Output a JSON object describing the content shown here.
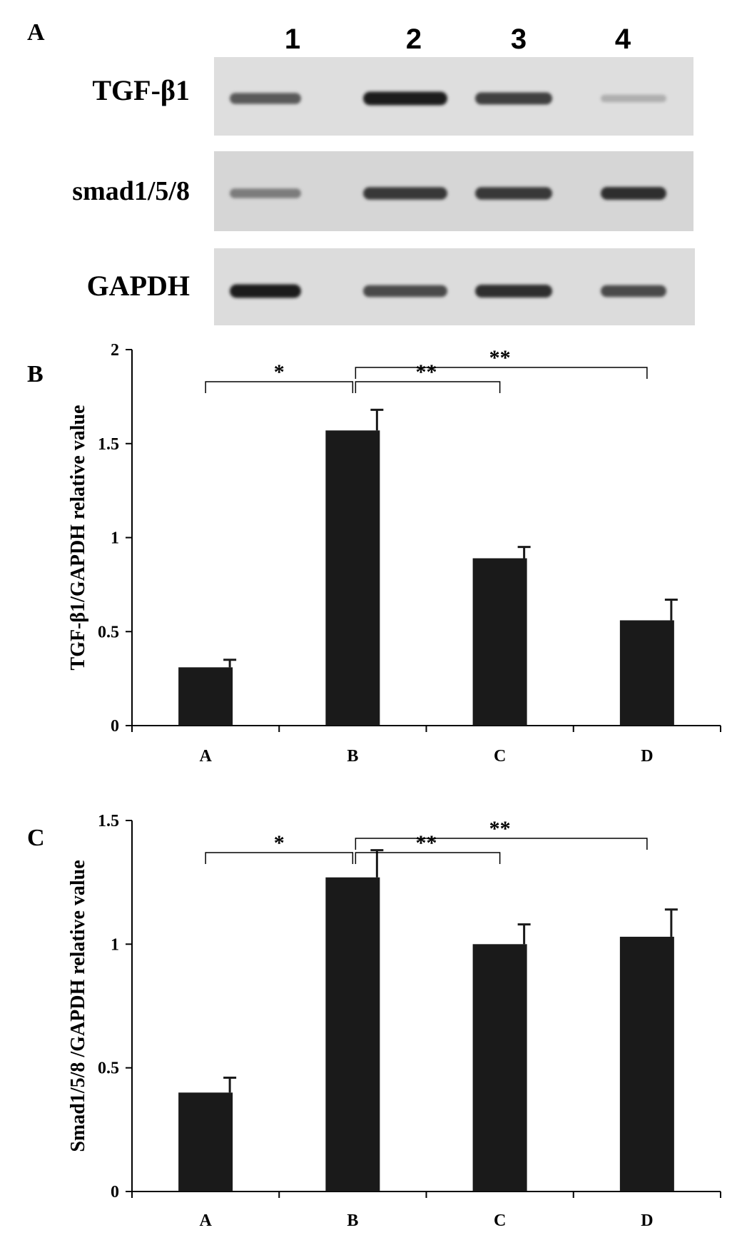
{
  "panel_a": {
    "label": "A",
    "lane_numbers": [
      "1",
      "2",
      "3",
      "4"
    ],
    "rows": [
      {
        "label": "TGF-β1",
        "band_intensity": [
          0.65,
          1.0,
          0.8,
          0.15
        ]
      },
      {
        "label": "smad1/5/8",
        "band_intensity": [
          0.45,
          0.85,
          0.85,
          0.9
        ]
      },
      {
        "label": "GAPDH",
        "band_intensity": [
          1.0,
          0.75,
          0.9,
          0.75
        ]
      }
    ]
  },
  "chart_data": [
    {
      "type": "bar",
      "panel_label": "B",
      "categories": [
        "A",
        "B",
        "C",
        "D"
      ],
      "values": [
        0.31,
        1.57,
        0.89,
        0.56
      ],
      "errors": [
        0.04,
        0.11,
        0.06,
        0.11
      ],
      "ylabel": "TGF-β1/GAPDH relative value",
      "ylim": [
        0,
        2
      ],
      "yticks": [
        0,
        0.5,
        1,
        1.5,
        2
      ],
      "ytick_labels": [
        "0",
        "0.5",
        "1",
        "1.5",
        "2"
      ],
      "significance": [
        {
          "from": "A",
          "to": "B",
          "label": "*"
        },
        {
          "from": "B",
          "to": "C",
          "label": "**"
        },
        {
          "from": "B",
          "to": "D",
          "label": "**"
        }
      ]
    },
    {
      "type": "bar",
      "panel_label": "C",
      "categories": [
        "A",
        "B",
        "C",
        "D"
      ],
      "values": [
        0.4,
        1.27,
        1.0,
        1.03
      ],
      "errors": [
        0.06,
        0.11,
        0.08,
        0.11
      ],
      "ylabel": "Smad1/5/8 /GAPDH relative value",
      "ylim": [
        0,
        1.5
      ],
      "yticks": [
        0,
        0.5,
        1,
        1.5
      ],
      "ytick_labels": [
        "0",
        "0.5",
        "1",
        "1.5"
      ],
      "significance": [
        {
          "from": "A",
          "to": "B",
          "label": "*"
        },
        {
          "from": "B",
          "to": "C",
          "label": "**"
        },
        {
          "from": "B",
          "to": "D",
          "label": "**"
        }
      ]
    }
  ]
}
